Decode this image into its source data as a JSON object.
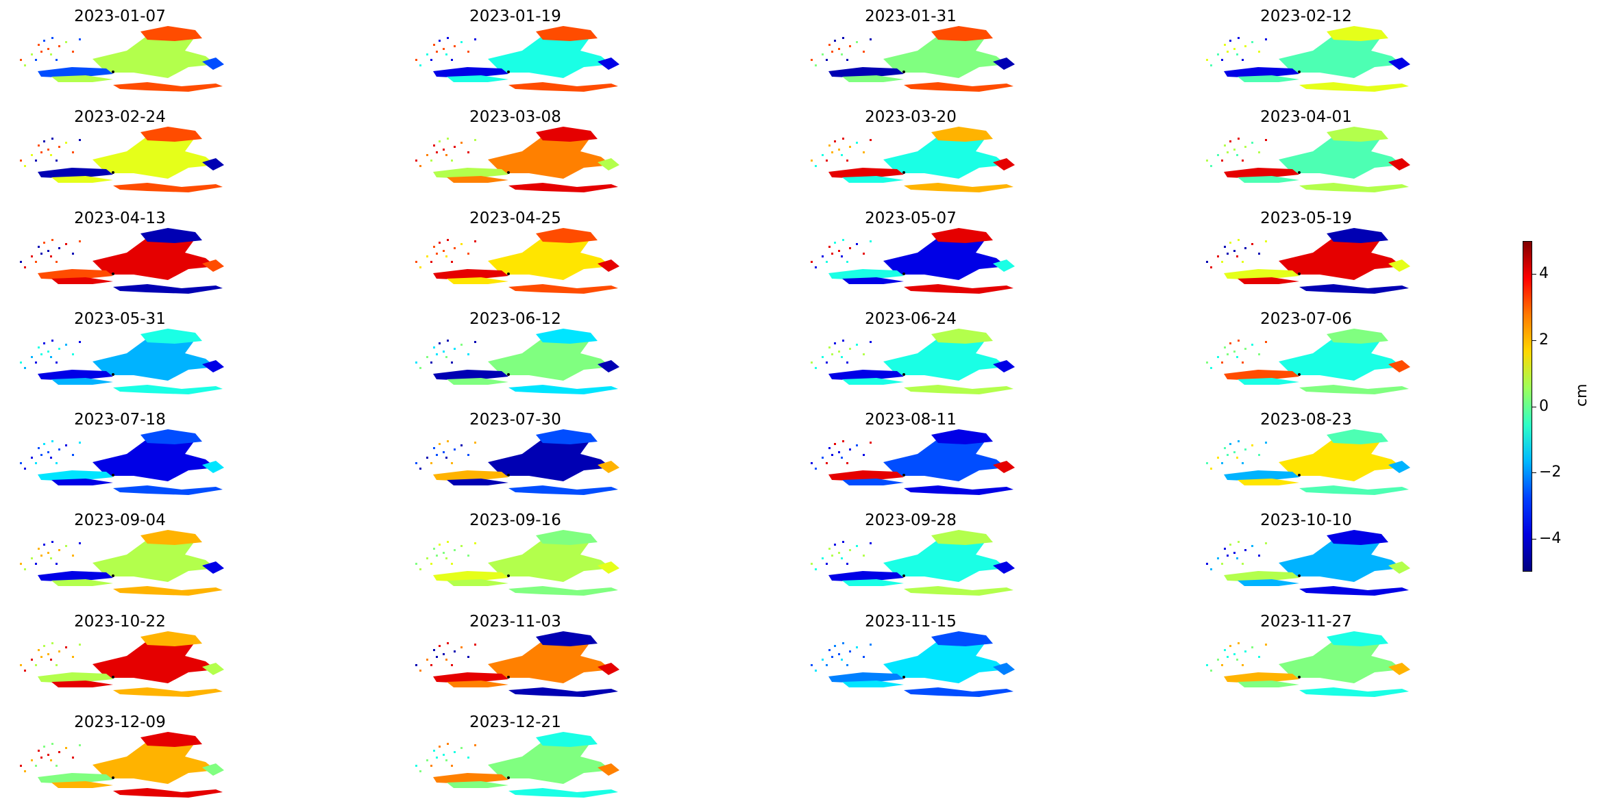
{
  "chart_data": {
    "type": "heatmap",
    "layout": {
      "rows": 8,
      "cols": 4
    },
    "panels": [
      "2023-01-07",
      "2023-01-19",
      "2023-01-31",
      "2023-02-12",
      "2023-02-24",
      "2023-03-08",
      "2023-03-20",
      "2023-04-01",
      "2023-04-13",
      "2023-04-25",
      "2023-05-07",
      "2023-05-19",
      "2023-05-31",
      "2023-06-12",
      "2023-06-24",
      "2023-07-06",
      "2023-07-18",
      "2023-07-30",
      "2023-08-11",
      "2023-08-23",
      "2023-09-04",
      "2023-09-16",
      "2023-09-28",
      "2023-10-10",
      "2023-10-22",
      "2023-11-03",
      "2023-11-15",
      "2023-11-27",
      "2023-12-09",
      "2023-12-21"
    ],
    "panel_dominant_values_cm": [
      [
        0.5,
        3.0,
        -3.0
      ],
      [
        -1.0,
        3.0,
        -4.0
      ],
      [
        0.0,
        3.0,
        -4.5
      ],
      [
        -0.5,
        1.0,
        -4.0
      ],
      [
        1.0,
        3.0,
        -4.5
      ],
      [
        2.5,
        4.0,
        0.5
      ],
      [
        -1.0,
        2.0,
        4.0
      ],
      [
        -0.5,
        0.5,
        4.0
      ],
      [
        4.0,
        -4.5,
        3.0
      ],
      [
        1.5,
        3.0,
        4.0
      ],
      [
        -4.0,
        4.0,
        -1.0
      ],
      [
        4.0,
        -4.5,
        1.0
      ],
      [
        -2.0,
        -1.0,
        -4.0
      ],
      [
        0.0,
        -1.5,
        -4.5
      ],
      [
        -1.0,
        0.5,
        -4.0
      ],
      [
        -1.0,
        0.0,
        3.0
      ],
      [
        -4.0,
        -3.0,
        -1.5
      ],
      [
        -4.5,
        -3.0,
        2.0
      ],
      [
        -3.0,
        -4.0,
        4.0
      ],
      [
        1.5,
        -0.5,
        -2.0
      ],
      [
        0.5,
        2.0,
        -4.0
      ],
      [
        0.5,
        0.0,
        1.0
      ],
      [
        -1.0,
        0.5,
        -4.0
      ],
      [
        -2.0,
        -4.0,
        0.5
      ],
      [
        4.0,
        2.0,
        0.5
      ],
      [
        2.5,
        -4.5,
        4.0
      ],
      [
        -1.5,
        -3.0,
        -2.5
      ],
      [
        0.0,
        -1.0,
        2.0
      ],
      [
        2.0,
        4.0,
        0.0
      ],
      [
        0.0,
        -1.0,
        2.5
      ]
    ],
    "colormap": "jet",
    "colorbar": {
      "label": "cm",
      "vmin": -5,
      "vmax": 5,
      "ticks": [
        "4",
        "2",
        "0",
        "−2",
        "−4"
      ],
      "tick_values": [
        4,
        2,
        0,
        -2,
        -4
      ]
    }
  }
}
